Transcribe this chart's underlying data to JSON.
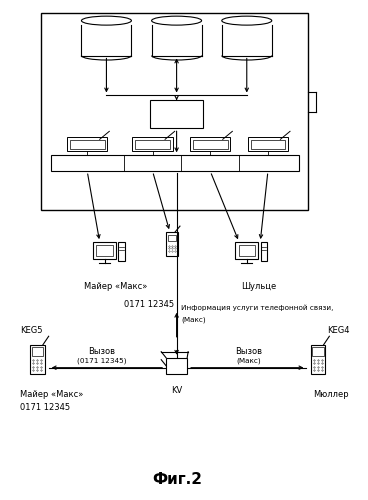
{
  "title": "Фиг.2",
  "bg_color": "#ffffff",
  "fig_width": 3.68,
  "fig_height": 5.0,
  "dpi": 100,
  "labels": {
    "maier_maks": "Майер «Макс»",
    "shultse": "Шульце",
    "keg5": "KEG5",
    "keg4": "KEG4",
    "kv": "KV",
    "myuller": "Мюллер",
    "maier_maks2": "Майер «Макс»",
    "phone_num1": "0171 12345",
    "phone_num2": "0171 12345",
    "phone_info": "Информация услуги телефонной связи,",
    "maks_paren": "(Макс)",
    "vyzov1": "Вызов",
    "vyzov1b": "(0171 12345)",
    "vyzov2": "Вызов",
    "vyzov2b": "(Макс)"
  }
}
